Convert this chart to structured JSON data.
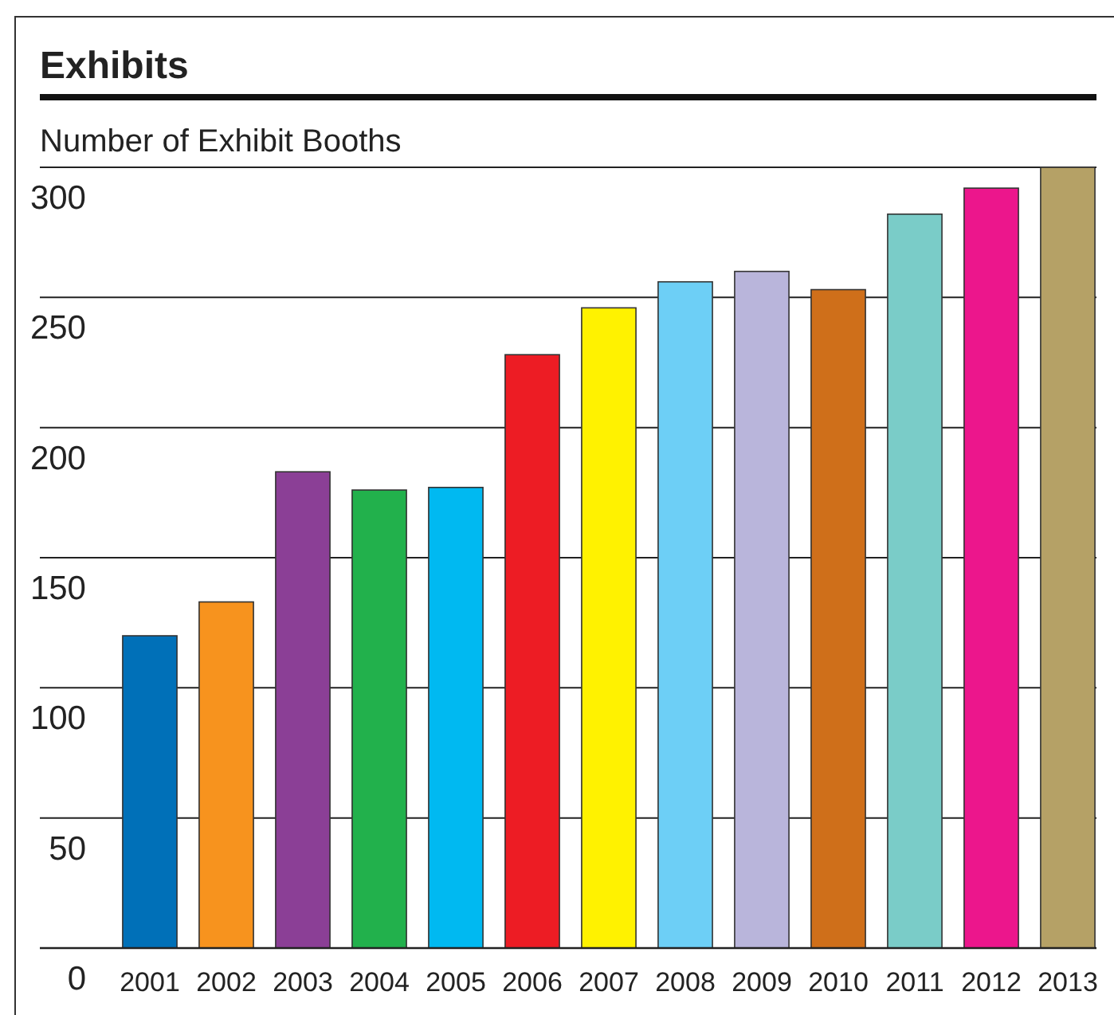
{
  "chart_data": {
    "type": "bar",
    "title": "Exhibits",
    "ylabel": "Number of Exhibit Booths",
    "categories": [
      "2001",
      "2002",
      "2003",
      "2004",
      "2005",
      "2006",
      "2007",
      "2008",
      "2009",
      "2010",
      "2011",
      "2012",
      "2013"
    ],
    "values": [
      120,
      133,
      183,
      176,
      177,
      228,
      246,
      256,
      260,
      253,
      282,
      292,
      300
    ],
    "colors": [
      "#0070b8",
      "#f7931e",
      "#8b3f96",
      "#22b14c",
      "#00b9f1",
      "#ed1c24",
      "#fff200",
      "#6dcff6",
      "#b9b5db",
      "#cf6f1a",
      "#7accc8",
      "#ec168c",
      "#b5a166"
    ],
    "ylim": [
      0,
      300
    ],
    "yticks": [
      0,
      50,
      100,
      150,
      200,
      250,
      300
    ],
    "grid": "y"
  }
}
